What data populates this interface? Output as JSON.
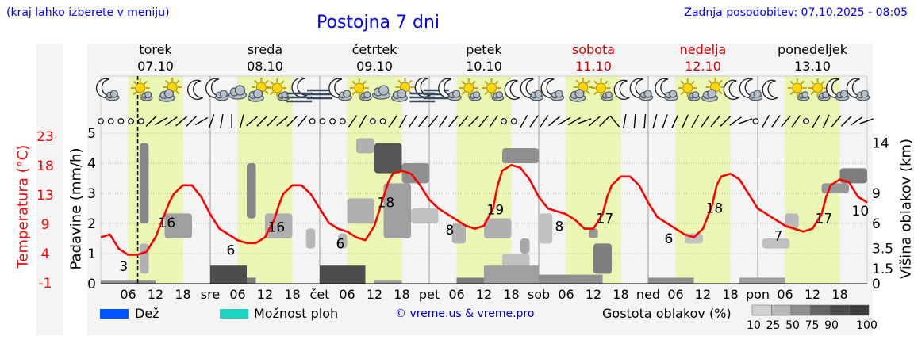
{
  "header": {
    "hint": "(kraj lahko izberete v meniju)",
    "title": "Postojna 7 dni",
    "updated": "Zadnja posodobitev: 07.10.2025 - 08:05"
  },
  "colors": {
    "temperature": "#ff0000",
    "weekend": "#cc0000",
    "day_band": "#eaf6b4",
    "rain": "#0055ff",
    "storm": "#1ed4c0",
    "link": "#0000ff"
  },
  "days": [
    {
      "name": "torek",
      "date": "07.10",
      "weekend": false,
      "abbr": ""
    },
    {
      "name": "sreda",
      "date": "08.10",
      "weekend": false,
      "abbr": "sre"
    },
    {
      "name": "četrtek",
      "date": "09.10",
      "weekend": false,
      "abbr": "čet"
    },
    {
      "name": "petek",
      "date": "10.10",
      "weekend": false,
      "abbr": "pet"
    },
    {
      "name": "sobota",
      "date": "11.10",
      "weekend": true,
      "abbr": "sob"
    },
    {
      "name": "nedelja",
      "date": "12.10",
      "weekend": true,
      "abbr": "ned"
    },
    {
      "name": "ponedeljek",
      "date": "13.10",
      "weekend": false,
      "abbr": "pon"
    }
  ],
  "chart_data": {
    "type": "line",
    "title": "Postojna 7 dni",
    "x_hours": [
      0,
      168
    ],
    "x_tick_labels": [
      "06",
      "12",
      "18"
    ],
    "now_hour": 8.1,
    "left_axis": {
      "label": "Padavine (mm/h)",
      "ticks": [
        0,
        1,
        2,
        3,
        4,
        5
      ],
      "ylim": [
        0,
        5
      ]
    },
    "temp_axis": {
      "label": "Temperatura (°C)",
      "ticks": [
        -1,
        4,
        9,
        13,
        18,
        23
      ]
    },
    "right_axis": {
      "label": "Višina oblakov (km)",
      "ticks": [
        0,
        1.5,
        3.5,
        6.0,
        9.0,
        14
      ],
      "ylim": [
        0,
        15
      ]
    },
    "temperature": {
      "name": "Temperatura",
      "x": [
        0,
        2,
        4,
        6,
        8,
        10,
        12,
        14,
        15,
        16,
        18,
        20,
        22,
        24,
        26,
        28,
        30,
        32,
        34,
        36,
        38,
        39,
        40,
        42,
        44,
        46,
        48,
        50,
        52,
        54,
        56,
        58,
        60,
        62,
        63,
        64,
        66,
        68,
        70,
        72,
        74,
        76,
        78,
        80,
        82,
        84,
        86,
        87,
        88,
        90,
        92,
        94,
        96,
        98,
        100,
        102,
        104,
        106,
        108,
        110,
        111,
        112,
        114,
        116,
        118,
        120,
        122,
        124,
        126,
        128,
        130,
        132,
        134,
        135,
        136,
        138,
        140,
        142,
        144,
        146,
        148,
        150,
        152,
        154,
        156,
        158,
        159,
        160,
        162,
        164,
        166,
        168
      ],
      "values": [
        7,
        7.5,
        5,
        4,
        4,
        4.5,
        7,
        11,
        13,
        14.5,
        16,
        16,
        14,
        11,
        8.5,
        7.5,
        6.5,
        6,
        6,
        7,
        10,
        12.5,
        14.5,
        16,
        16,
        14.5,
        12,
        9.5,
        8.5,
        8,
        7,
        6.5,
        9,
        14,
        16.5,
        18,
        18.5,
        18,
        16,
        13.5,
        12,
        11,
        10,
        9,
        8.5,
        9,
        12,
        16,
        18.5,
        19.5,
        19,
        17,
        14,
        12,
        11.5,
        11,
        10,
        8.5,
        8.5,
        11,
        14,
        16,
        17.5,
        17.5,
        16,
        13,
        10.5,
        9.5,
        8.5,
        7.5,
        7,
        8.5,
        12.5,
        16,
        17.5,
        18,
        17,
        14.5,
        12,
        11,
        10,
        9,
        8.5,
        8,
        8.5,
        11,
        14,
        16,
        17,
        16.5,
        14,
        13
      ],
      "ylim": [
        -1,
        25
      ]
    },
    "daily_labels": [
      {
        "hour": 5,
        "value": 3
      },
      {
        "hour": 14.5,
        "value": 16
      },
      {
        "hour": 28.5,
        "value": 6
      },
      {
        "hour": 38.5,
        "value": 16
      },
      {
        "hour": 52.5,
        "value": 6
      },
      {
        "hour": 62.5,
        "value": 18
      },
      {
        "hour": 76.5,
        "value": 8
      },
      {
        "hour": 86.5,
        "value": 19
      },
      {
        "hour": 100.5,
        "value": 8
      },
      {
        "hour": 110.5,
        "value": 17
      },
      {
        "hour": 124.5,
        "value": 6
      },
      {
        "hour": 134.5,
        "value": 18
      },
      {
        "hour": 148.5,
        "value": 7
      },
      {
        "hour": 158.5,
        "value": 17
      },
      {
        "hour": 166.5,
        "value": 10
      }
    ],
    "cloud_layers": [
      {
        "h0": 8.5,
        "h1": 10.5,
        "lo": 6,
        "hi": 14,
        "d": 55
      },
      {
        "h0": 8.5,
        "h1": 10.5,
        "lo": 1,
        "hi": 4,
        "d": 30
      },
      {
        "h0": 14,
        "h1": 20,
        "lo": 4.5,
        "hi": 7,
        "d": 40
      },
      {
        "h0": 32,
        "h1": 34,
        "lo": 6.5,
        "hi": 12,
        "d": 55
      },
      {
        "h0": 36,
        "h1": 42,
        "lo": 4.5,
        "hi": 7,
        "d": 30
      },
      {
        "h0": 45,
        "h1": 47,
        "lo": 3.5,
        "hi": 5.5,
        "d": 25
      },
      {
        "h0": 52,
        "h1": 54,
        "lo": 3.5,
        "hi": 5,
        "d": 25
      },
      {
        "h0": 54,
        "h1": 60,
        "lo": 6,
        "hi": 8.5,
        "d": 30
      },
      {
        "h0": 56,
        "h1": 60,
        "lo": 13,
        "hi": 14.5,
        "d": 30
      },
      {
        "h0": 60,
        "h1": 66,
        "lo": 11,
        "hi": 14,
        "d": 85
      },
      {
        "h0": 62,
        "h1": 68,
        "lo": 4.5,
        "hi": 10,
        "d": 40
      },
      {
        "h0": 66,
        "h1": 72,
        "lo": 10,
        "hi": 12,
        "d": 50
      },
      {
        "h0": 68,
        "h1": 74,
        "lo": 6,
        "hi": 7.5,
        "d": 20
      },
      {
        "h0": 77,
        "h1": 80,
        "lo": 4,
        "hi": 6,
        "d": 30
      },
      {
        "h0": 84,
        "h1": 90,
        "lo": 4.5,
        "hi": 6.5,
        "d": 30
      },
      {
        "h0": 88,
        "h1": 96,
        "lo": 12,
        "hi": 13.5,
        "d": 50
      },
      {
        "h0": 88,
        "h1": 94,
        "lo": 1,
        "hi": 3,
        "d": 20
      },
      {
        "h0": 92,
        "h1": 94,
        "lo": 3,
        "hi": 4.5,
        "d": 35
      },
      {
        "h0": 96,
        "h1": 99,
        "lo": 4,
        "hi": 7,
        "d": 20
      },
      {
        "h0": 107,
        "h1": 109,
        "lo": 4.5,
        "hi": 5.5,
        "d": 45
      },
      {
        "h0": 108,
        "h1": 112,
        "lo": 1,
        "hi": 4,
        "d": 60
      },
      {
        "h0": 128,
        "h1": 132,
        "lo": 4,
        "hi": 5,
        "d": 20
      },
      {
        "h0": 145,
        "h1": 151,
        "lo": 3.5,
        "hi": 4.5,
        "d": 20
      },
      {
        "h0": 150,
        "h1": 153,
        "lo": 5.5,
        "hi": 7,
        "d": 25
      },
      {
        "h0": 158,
        "h1": 164,
        "lo": 9,
        "hi": 10,
        "d": 45
      },
      {
        "h0": 162,
        "h1": 168,
        "lo": 10,
        "hi": 11.5,
        "d": 60
      }
    ],
    "precip_bars": [
      {
        "h0": 0,
        "h1": 12,
        "mm": 0.1,
        "d": 50
      },
      {
        "h0": 24,
        "h1": 32,
        "mm": 0.6,
        "d": 90
      },
      {
        "h0": 32,
        "h1": 34,
        "mm": 0.2,
        "d": 60
      },
      {
        "h0": 48,
        "h1": 58,
        "mm": 0.6,
        "d": 90
      },
      {
        "h0": 60,
        "h1": 66,
        "mm": 0.1,
        "d": 40
      },
      {
        "h0": 78,
        "h1": 84,
        "mm": 0.2,
        "d": 60
      },
      {
        "h0": 84,
        "h1": 96,
        "mm": 0.6,
        "d": 40
      },
      {
        "h0": 96,
        "h1": 110,
        "mm": 0.3,
        "d": 50
      },
      {
        "h0": 120,
        "h1": 130,
        "mm": 0.2,
        "d": 50
      },
      {
        "h0": 140,
        "h1": 150,
        "mm": 0.2,
        "d": 40
      }
    ],
    "wind_angles": [
      null,
      null,
      null,
      null,
      null,
      45,
      30,
      35,
      40,
      45,
      30,
      70,
      80,
      90,
      75,
      40,
      45,
      45,
      40,
      45,
      50,
      null,
      null,
      null,
      null,
      55,
      60,
      null,
      null,
      55,
      60,
      55,
      50,
      50,
      55,
      50,
      50,
      45,
      50,
      55,
      null,
      null,
      60,
      55,
      55,
      40,
      30,
      30,
      20,
      40,
      45,
      130,
      80,
      85,
      85,
      75,
      70,
      65,
      65,
      60,
      55,
      50,
      45,
      35,
      20,
      null,
      60,
      55,
      50,
      55,
      null,
      60,
      65,
      50,
      45,
      35,
      20
    ]
  },
  "icons": [
    {
      "hour": 1.5,
      "icon": "moon-cloud"
    },
    {
      "hour": 9,
      "icon": "sun-cloud"
    },
    {
      "hour": 15,
      "icon": "sun-cloud-big"
    },
    {
      "hour": 21,
      "icon": "moon"
    },
    {
      "hour": 25.5,
      "icon": "moon-cloud"
    },
    {
      "hour": 30,
      "icon": "cloud"
    },
    {
      "hour": 34.5,
      "icon": "sun-cloud-big"
    },
    {
      "hour": 39,
      "icon": "sun-cloud"
    },
    {
      "hour": 43.5,
      "icon": "moon-fog"
    },
    {
      "hour": 48,
      "icon": "fog"
    },
    {
      "hour": 52.5,
      "icon": "moon-cloud"
    },
    {
      "hour": 57,
      "icon": "sun-cloud"
    },
    {
      "hour": 61.5,
      "icon": "cloud"
    },
    {
      "hour": 66,
      "icon": "sun-cloud-big"
    },
    {
      "hour": 70.5,
      "icon": "moon-fog"
    },
    {
      "hour": 73.5,
      "icon": "fog"
    },
    {
      "hour": 76.5,
      "icon": "moon-cloud"
    },
    {
      "hour": 81,
      "icon": "sun-cloud"
    },
    {
      "hour": 86,
      "icon": "sun-cloud"
    },
    {
      "hour": 90.5,
      "icon": "moon"
    },
    {
      "hour": 94.5,
      "icon": "moon-cloud"
    },
    {
      "hour": 99,
      "icon": "moon-cloud"
    },
    {
      "hour": 105,
      "icon": "sun-cloud-big"
    },
    {
      "hour": 110,
      "icon": "sun-cloud"
    },
    {
      "hour": 114.5,
      "icon": "moon"
    },
    {
      "hour": 118.5,
      "icon": "moon-cloud"
    },
    {
      "hour": 124,
      "icon": "moon-cloud"
    },
    {
      "hour": 129,
      "icon": "sun-cloud"
    },
    {
      "hour": 134,
      "icon": "sun-cloud-big"
    },
    {
      "hour": 138.5,
      "icon": "moon"
    },
    {
      "hour": 142.5,
      "icon": "moon-cloud"
    },
    {
      "hour": 147,
      "icon": "moon"
    },
    {
      "hour": 153,
      "icon": "sun-cloud"
    },
    {
      "hour": 157.5,
      "icon": "sun-cloud"
    },
    {
      "hour": 161.5,
      "icon": "moon-cloud"
    },
    {
      "hour": 166,
      "icon": "moon-cloud"
    }
  ],
  "legend": {
    "rain": "Dež",
    "storm": "Možnost ploh",
    "credit": "© vreme.us & vreme.pro",
    "density_title": "Gostota oblakov (%)",
    "density_steps": [
      10,
      25,
      50,
      75,
      90,
      100
    ]
  }
}
